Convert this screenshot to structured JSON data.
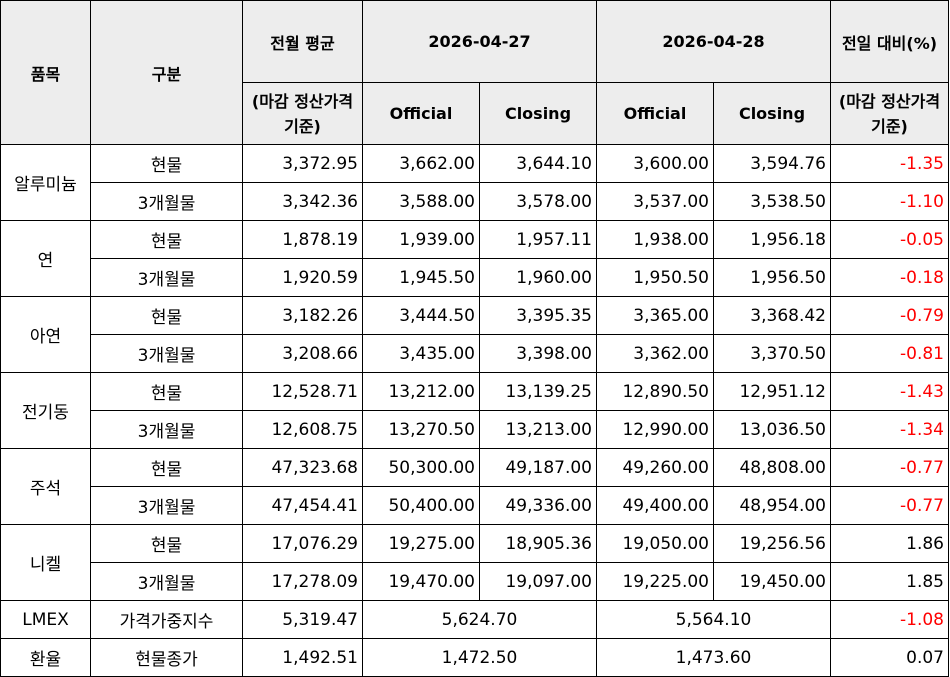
{
  "header": {
    "item": "품목",
    "category": "구분",
    "prev_month_avg": "전월 평균",
    "prev_month_avg_note": "(마감 정산가격 기준)",
    "date1": "2026-04-27",
    "date2": "2026-04-28",
    "day_change": "전일 대비(%)",
    "day_change_note": "(마감 정산가격 기준)",
    "official": "Official",
    "closing": "Closing"
  },
  "metals": [
    {
      "name": "알루미늄",
      "rows": [
        {
          "type": "현물",
          "avg": "3,372.95",
          "d1_off": "3,662.00",
          "d1_close": "3,644.10",
          "d2_off": "3,600.00",
          "d2_close": "3,594.76",
          "change": "-1.35"
        },
        {
          "type": "3개월물",
          "avg": "3,342.36",
          "d1_off": "3,588.00",
          "d1_close": "3,578.00",
          "d2_off": "3,537.00",
          "d2_close": "3,538.50",
          "change": "-1.10"
        }
      ]
    },
    {
      "name": "연",
      "rows": [
        {
          "type": "현물",
          "avg": "1,878.19",
          "d1_off": "1,939.00",
          "d1_close": "1,957.11",
          "d2_off": "1,938.00",
          "d2_close": "1,956.18",
          "change": "-0.05"
        },
        {
          "type": "3개월물",
          "avg": "1,920.59",
          "d1_off": "1,945.50",
          "d1_close": "1,960.00",
          "d2_off": "1,950.50",
          "d2_close": "1,956.50",
          "change": "-0.18"
        }
      ]
    },
    {
      "name": "아연",
      "rows": [
        {
          "type": "현물",
          "avg": "3,182.26",
          "d1_off": "3,444.50",
          "d1_close": "3,395.35",
          "d2_off": "3,365.00",
          "d2_close": "3,368.42",
          "change": "-0.79"
        },
        {
          "type": "3개월물",
          "avg": "3,208.66",
          "d1_off": "3,435.00",
          "d1_close": "3,398.00",
          "d2_off": "3,362.00",
          "d2_close": "3,370.50",
          "change": "-0.81"
        }
      ]
    },
    {
      "name": "전기동",
      "rows": [
        {
          "type": "현물",
          "avg": "12,528.71",
          "d1_off": "13,212.00",
          "d1_close": "13,139.25",
          "d2_off": "12,890.50",
          "d2_close": "12,951.12",
          "change": "-1.43"
        },
        {
          "type": "3개월물",
          "avg": "12,608.75",
          "d1_off": "13,270.50",
          "d1_close": "13,213.00",
          "d2_off": "12,990.00",
          "d2_close": "13,036.50",
          "change": "-1.34"
        }
      ]
    },
    {
      "name": "주석",
      "rows": [
        {
          "type": "현물",
          "avg": "47,323.68",
          "d1_off": "50,300.00",
          "d1_close": "49,187.00",
          "d2_off": "49,260.00",
          "d2_close": "48,808.00",
          "change": "-0.77"
        },
        {
          "type": "3개월물",
          "avg": "47,454.41",
          "d1_off": "50,400.00",
          "d1_close": "49,336.00",
          "d2_off": "49,400.00",
          "d2_close": "48,954.00",
          "change": "-0.77"
        }
      ]
    },
    {
      "name": "니켈",
      "rows": [
        {
          "type": "현물",
          "avg": "17,076.29",
          "d1_off": "19,275.00",
          "d1_close": "18,905.36",
          "d2_off": "19,050.00",
          "d2_close": "19,256.56",
          "change": "1.86"
        },
        {
          "type": "3개월물",
          "avg": "17,278.09",
          "d1_off": "19,470.00",
          "d1_close": "19,097.00",
          "d2_off": "19,225.00",
          "d2_close": "19,450.00",
          "change": "1.85"
        }
      ]
    }
  ],
  "lmex": {
    "name": "LMEX",
    "type": "가격가중지수",
    "avg": "5,319.47",
    "d1": "5,624.70",
    "d2": "5,564.10",
    "change": "-1.08"
  },
  "fx": {
    "name": "환율",
    "type": "현물종가",
    "avg": "1,492.51",
    "d1": "1,472.50",
    "d2": "1,473.60",
    "change": "0.07"
  },
  "colors": {
    "negative": "#ff0000",
    "header_bg": "#ededed"
  }
}
